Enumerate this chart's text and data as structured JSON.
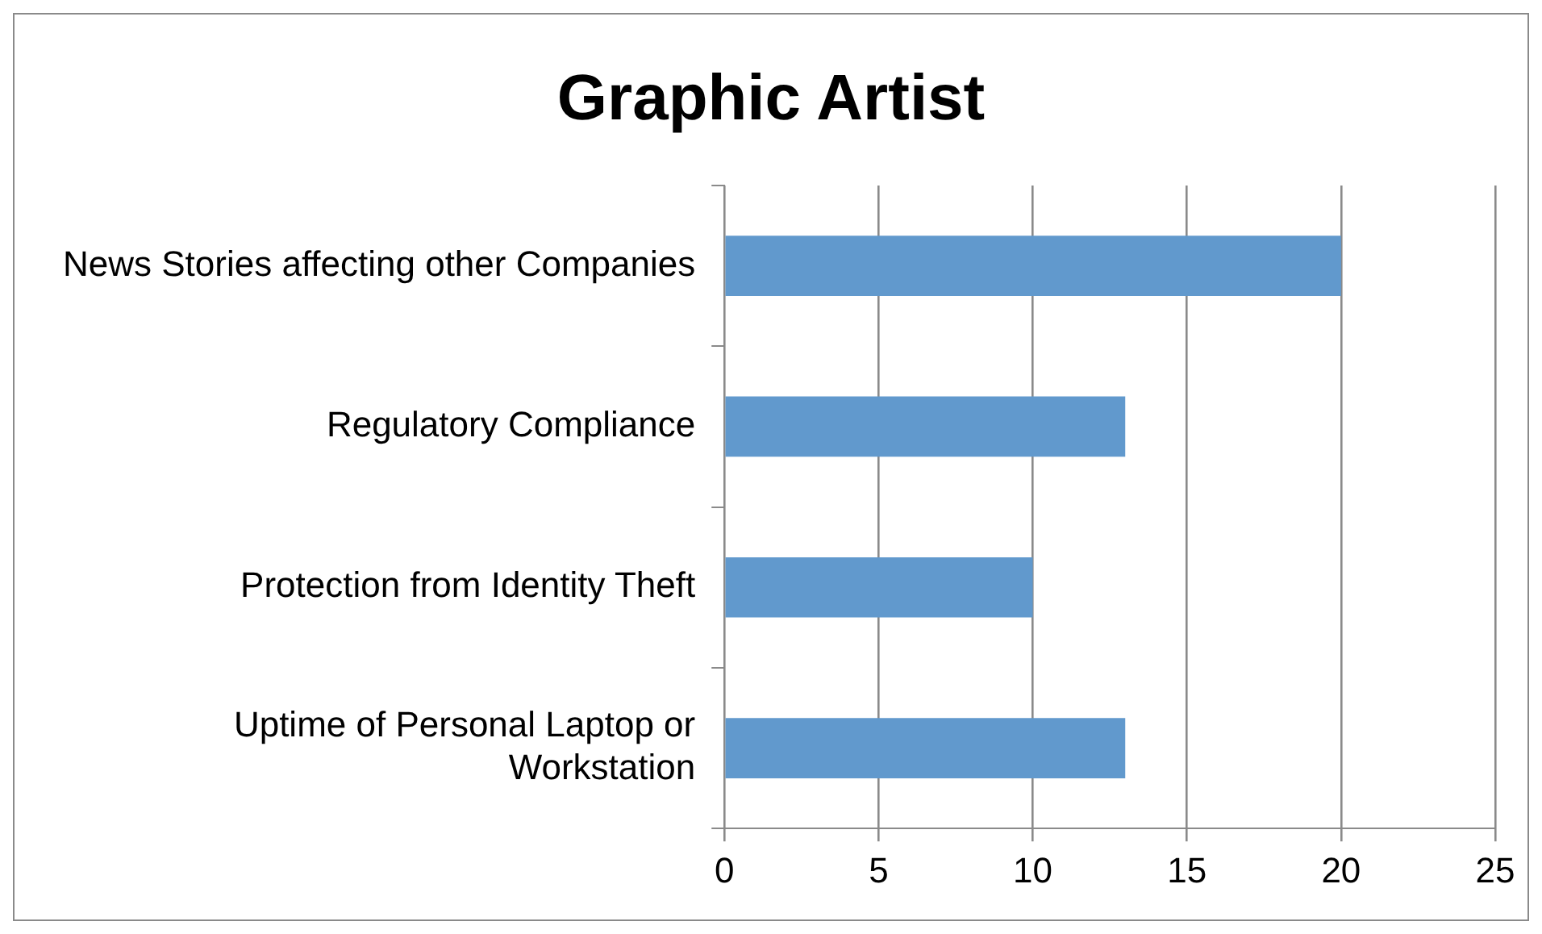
{
  "chart_data": {
    "type": "bar",
    "orientation": "horizontal",
    "title": "Graphic Artist",
    "categories": [
      "News Stories affecting other Companies",
      "Regulatory Compliance",
      "Protection from Identity Theft",
      "Uptime of Personal Laptop or Workstation"
    ],
    "values": [
      20,
      13,
      10,
      13
    ],
    "color": "#6199cd",
    "xlim": [
      0,
      25
    ],
    "xticks": [
      0,
      5,
      10,
      15,
      20,
      25
    ],
    "grid": "x",
    "legend": false
  }
}
